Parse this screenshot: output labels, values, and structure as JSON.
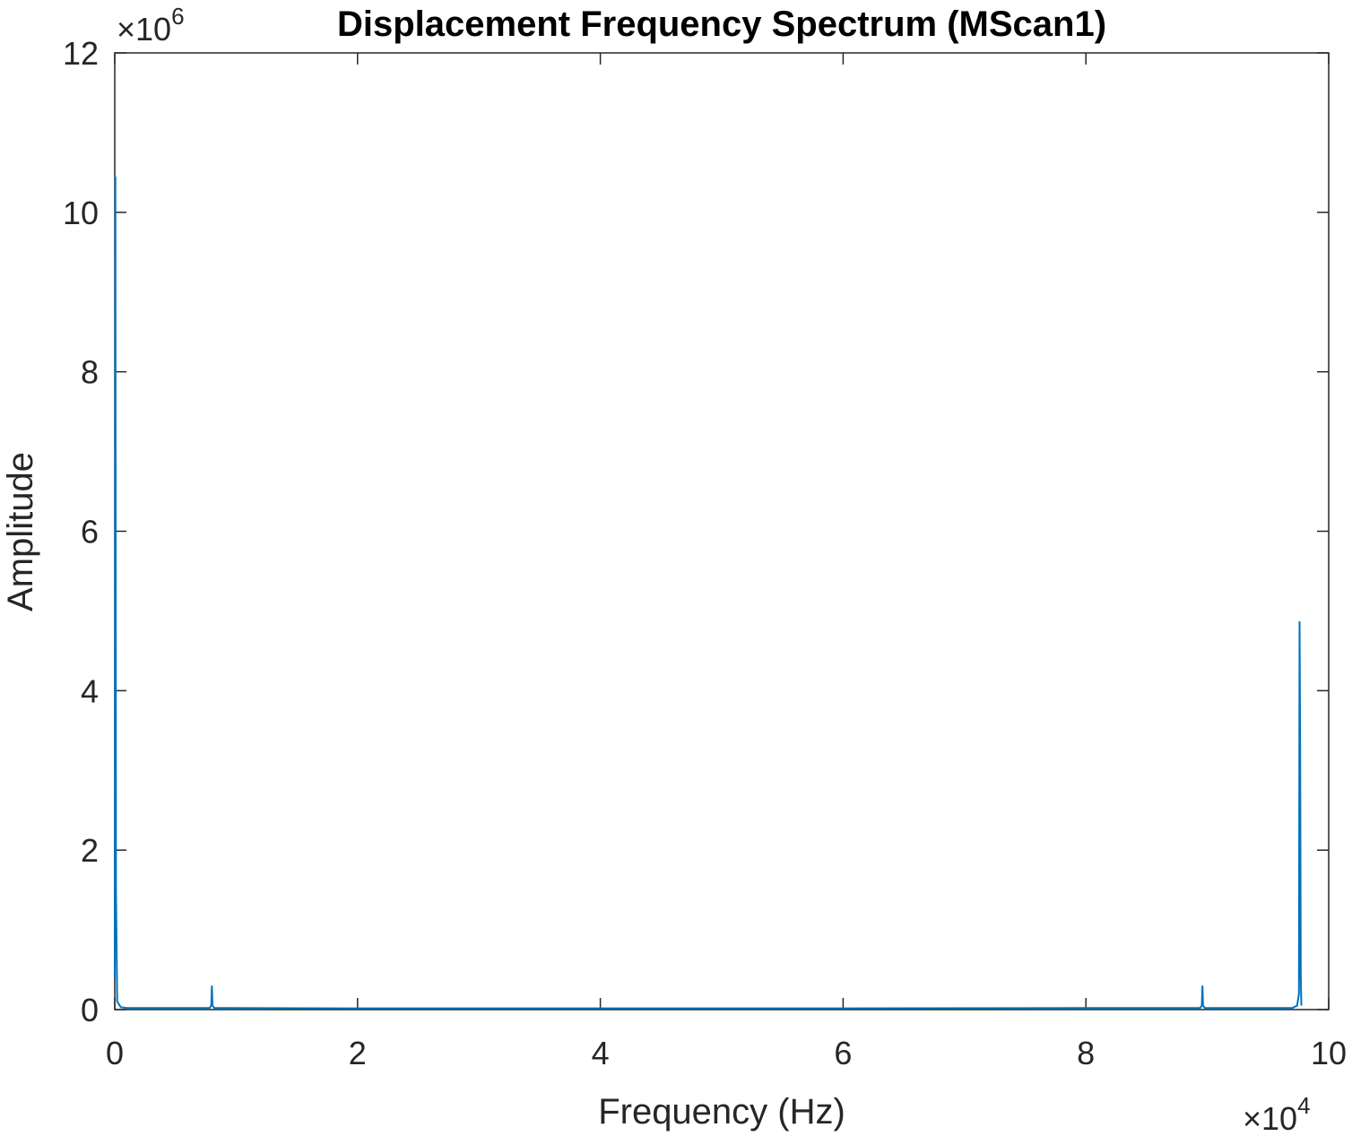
{
  "chart_data": {
    "type": "line",
    "title": "Displacement Frequency Spectrum (MScan1)",
    "xlabel": "Frequency (Hz)",
    "ylabel": "Amplitude",
    "x_multiplier_base": "×10",
    "x_multiplier_exp": "4",
    "y_multiplier_base": "×10",
    "y_multiplier_exp": "6",
    "xlim": [
      0,
      10
    ],
    "ylim": [
      0,
      12
    ],
    "x_ticks": [
      0,
      2,
      4,
      6,
      8,
      10
    ],
    "y_ticks": [
      0,
      2,
      4,
      6,
      8,
      10,
      12
    ],
    "x_tick_labels": [
      "0",
      "2",
      "4",
      "6",
      "8",
      "10"
    ],
    "y_tick_labels": [
      "0",
      "2",
      "4",
      "6",
      "8",
      "10",
      "12"
    ],
    "grid": false,
    "line_color": "#0072BD",
    "series": [
      {
        "x": [
          0,
          0.005,
          0.01,
          0.02,
          0.05,
          0.1,
          0.78,
          0.795,
          0.8,
          0.805,
          0.82,
          2.0,
          4.0,
          6.0,
          8.0,
          8.94,
          8.955,
          8.96,
          8.965,
          8.98,
          9.7,
          9.74,
          9.755,
          9.76,
          9.765,
          9.77,
          9.775
        ],
        "values": [
          0.4,
          10.45,
          1.5,
          0.1,
          0.03,
          0.02,
          0.02,
          0.05,
          0.3,
          0.05,
          0.02,
          0.015,
          0.015,
          0.015,
          0.02,
          0.02,
          0.05,
          0.3,
          0.05,
          0.02,
          0.02,
          0.05,
          0.2,
          4.87,
          3.3,
          0.4,
          0.05
        ]
      }
    ]
  }
}
